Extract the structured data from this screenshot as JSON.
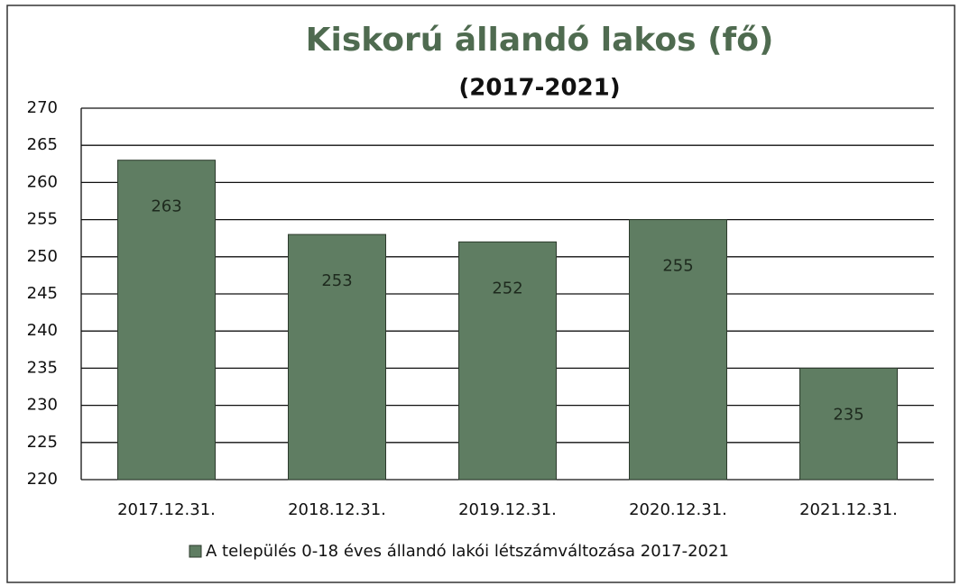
{
  "chart_data": {
    "type": "bar",
    "title": "Kiskorú állandó lakos (fő)",
    "subtitle": "(2017-2021)",
    "categories": [
      "2017.12.31.",
      "2018.12.31.",
      "2019.12.31.",
      "2020.12.31.",
      "2021.12.31."
    ],
    "series": [
      {
        "name": "A település 0-18 éves állandó lakói létszámváltozása 2017-2021",
        "color": "#5f7d62",
        "values": [
          263,
          253,
          252,
          255,
          235
        ]
      }
    ],
    "ylim": [
      220,
      270
    ],
    "yticks": [
      220,
      225,
      230,
      235,
      240,
      245,
      250,
      255,
      260,
      265,
      270
    ],
    "grid": true,
    "legend": "bottom"
  }
}
